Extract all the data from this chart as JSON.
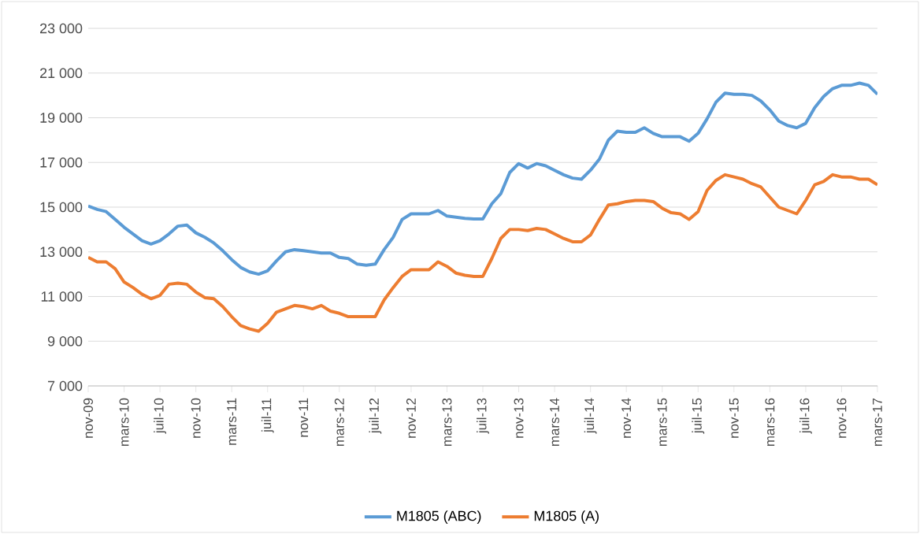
{
  "chart_data": {
    "type": "line",
    "categories": [
      "nov-09",
      null,
      null,
      null,
      "mars-10",
      null,
      null,
      null,
      "juil-10",
      null,
      null,
      null,
      "nov-10",
      null,
      null,
      null,
      "mars-11",
      null,
      null,
      null,
      "juil-11",
      null,
      null,
      null,
      "nov-11",
      null,
      null,
      null,
      "mars-12",
      null,
      null,
      null,
      "juil-12",
      null,
      null,
      null,
      "nov-12",
      null,
      null,
      null,
      "mars-13",
      null,
      null,
      null,
      "juil-13",
      null,
      null,
      null,
      "nov-13",
      null,
      null,
      null,
      "mars-14",
      null,
      null,
      null,
      "juil-14",
      null,
      null,
      null,
      "nov-14",
      null,
      null,
      null,
      "mars-15",
      null,
      null,
      null,
      "juil-15",
      null,
      null,
      null,
      "nov-15",
      null,
      null,
      null,
      "mars-16",
      null,
      null,
      null,
      "juil-16",
      null,
      null,
      null,
      "nov-16",
      null,
      null,
      null,
      "mars-17"
    ],
    "series": [
      {
        "name": "M1805 (ABC)",
        "color": "#5b9bd5",
        "values": [
          15050,
          14900,
          14800,
          14450,
          14100,
          13800,
          13500,
          13350,
          13500,
          13800,
          14150,
          14200,
          13850,
          13650,
          13400,
          13050,
          12650,
          12300,
          12100,
          12000,
          12150,
          12600,
          13000,
          13100,
          13050,
          13000,
          12950,
          12950,
          12750,
          12700,
          12450,
          12400,
          12450,
          13100,
          13650,
          14450,
          14700,
          14700,
          14700,
          14850,
          14600,
          14550,
          14500,
          14470,
          14470,
          15150,
          15600,
          16550,
          16950,
          16750,
          16950,
          16850,
          16650,
          16450,
          16300,
          16250,
          16650,
          17150,
          18000,
          18400,
          18350,
          18350,
          18550,
          18300,
          18150,
          18150,
          18150,
          17950,
          18300,
          18950,
          19700,
          20100,
          20050,
          20050,
          20000,
          19750,
          19350,
          18850,
          18650,
          18550,
          18750,
          19450,
          19950,
          20300,
          20450,
          20450,
          20550,
          20450,
          20050
        ]
      },
      {
        "name": "M1805 (A)",
        "color": "#ed7d31",
        "values": [
          12750,
          12550,
          12550,
          12250,
          11650,
          11400,
          11100,
          10900,
          11050,
          11550,
          11600,
          11550,
          11200,
          10950,
          10900,
          10550,
          10100,
          9700,
          9550,
          9450,
          9800,
          10300,
          10450,
          10600,
          10550,
          10450,
          10600,
          10350,
          10250,
          10100,
          10100,
          10100,
          10100,
          10850,
          11400,
          11900,
          12200,
          12200,
          12200,
          12550,
          12350,
          12050,
          11950,
          11900,
          11900,
          12700,
          13600,
          14000,
          14000,
          13950,
          14050,
          14000,
          13800,
          13600,
          13450,
          13450,
          13750,
          14450,
          15100,
          15150,
          15250,
          15300,
          15300,
          15250,
          14950,
          14750,
          14700,
          14450,
          14800,
          15750,
          16200,
          16450,
          16350,
          16250,
          16050,
          15900,
          15450,
          15000,
          14850,
          14700,
          15300,
          16000,
          16150,
          16450,
          16350,
          16350,
          16250,
          16250,
          16000
        ]
      }
    ],
    "ylim": [
      7000,
      23000
    ],
    "yticks": [
      {
        "value": 7000,
        "label": "7 000"
      },
      {
        "value": 9000,
        "label": "9 000"
      },
      {
        "value": 11000,
        "label": "11 000"
      },
      {
        "value": 13000,
        "label": "13 000"
      },
      {
        "value": 15000,
        "label": "15 000"
      },
      {
        "value": 17000,
        "label": "17 000"
      },
      {
        "value": 19000,
        "label": "19 000"
      },
      {
        "value": 21000,
        "label": "21 000"
      },
      {
        "value": 23000,
        "label": "23 000"
      }
    ],
    "grid": "y",
    "legend": "bottom",
    "marker": "none"
  }
}
